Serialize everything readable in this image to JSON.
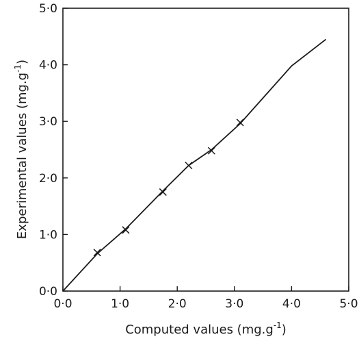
{
  "chart_data": {
    "type": "scatter",
    "xlabel": "Computed values (mg.g",
    "xlabel_sup": "-1",
    "xlabel_end": ")",
    "ylabel": "Experimental values (mg.g",
    "ylabel_sup": "-1",
    "ylabel_end": ")",
    "xlim": [
      0,
      5
    ],
    "ylim": [
      0,
      5
    ],
    "x_ticks": [
      "0·0",
      "1·0",
      "2·0",
      "3·0",
      "4·0",
      "5·0"
    ],
    "y_ticks": [
      "0·0",
      "1·0",
      "2·0",
      "3·0",
      "4·0",
      "5·0"
    ],
    "grid": false,
    "series": [
      {
        "marker": "x",
        "x": [
          0.6,
          1.1,
          1.75,
          2.2,
          2.6,
          3.1
        ],
        "y": [
          0.68,
          1.08,
          1.75,
          2.22,
          2.48,
          2.98
        ]
      }
    ],
    "fit_line": {
      "x": [
        0.0,
        0.6,
        1.1,
        1.75,
        2.2,
        2.6,
        3.1,
        4.0,
        4.6
      ],
      "y": [
        0.0,
        0.66,
        1.1,
        1.77,
        2.22,
        2.5,
        2.96,
        3.98,
        4.45
      ]
    }
  }
}
